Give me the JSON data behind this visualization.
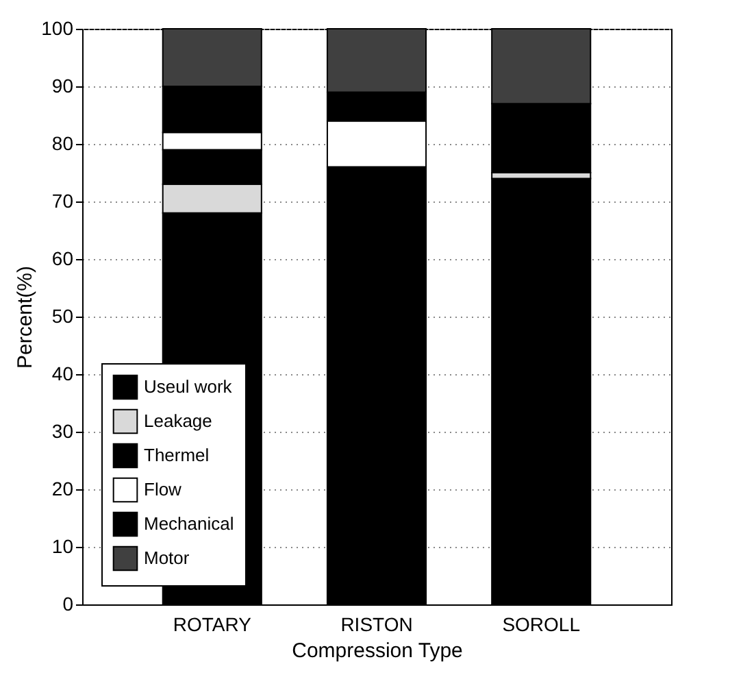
{
  "chart_data": {
    "type": "bar",
    "stacked": true,
    "xlabel": "Compression Type",
    "ylabel": "Percent(%)",
    "categories": [
      "ROTARY",
      "RISTON",
      "SOROLL"
    ],
    "series": [
      {
        "name": "Useul work",
        "color": "#000000",
        "values": [
          68,
          76,
          74
        ]
      },
      {
        "name": "Leakage",
        "color": "#d9d9d9",
        "values": [
          5,
          0,
          1
        ]
      },
      {
        "name": "Thermel",
        "color": "#000000",
        "values": [
          6,
          0,
          0
        ]
      },
      {
        "name": "Flow",
        "color": "#ffffff",
        "values": [
          3,
          8,
          0
        ]
      },
      {
        "name": "Mechanical",
        "color": "#000000",
        "values": [
          8,
          5,
          12
        ]
      },
      {
        "name": "Motor",
        "color": "#404040",
        "values": [
          10,
          11,
          13
        ]
      }
    ],
    "ylim": [
      0,
      100
    ],
    "yticks": [
      0,
      10,
      20,
      30,
      40,
      50,
      60,
      70,
      80,
      90,
      100
    ],
    "grid": "y",
    "legend": "bottom left"
  }
}
